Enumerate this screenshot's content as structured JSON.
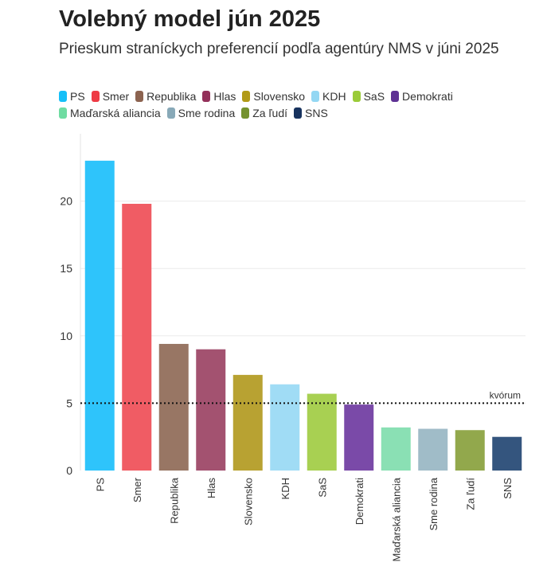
{
  "chart_data": {
    "type": "bar",
    "title": "Volebný model jún 2025",
    "subtitle": "Prieskum straníckych preferencií podľa agentúry NMS v júni 2025",
    "categories": [
      "PS",
      "Smer",
      "Republika",
      "Hlas",
      "Slovensko",
      "KDH",
      "SaS",
      "Demokrati",
      "Maďarská aliancia",
      "Sme rodina",
      "Za ľudí",
      "SNS"
    ],
    "values": [
      23.0,
      19.8,
      9.4,
      9.0,
      7.1,
      6.4,
      5.7,
      4.9,
      3.2,
      3.1,
      3.0,
      2.5
    ],
    "colors": [
      "#2ec4fb",
      "#f05c64",
      "#987664",
      "#a35270",
      "#b8a232",
      "#a0dcf5",
      "#a8d052",
      "#7a4aa8",
      "#8ae0b4",
      "#a0bcc8",
      "#92a84c",
      "#34557e"
    ],
    "legend_colors": [
      "#16bff8",
      "#ee3a44",
      "#8c6350",
      "#93305a",
      "#b19a17",
      "#93d7f3",
      "#9acb38",
      "#5e3194",
      "#6fdca2",
      "#88a9b8",
      "#74922e",
      "#17325e"
    ],
    "ylim": [
      0,
      25
    ],
    "yticks": [
      0,
      5,
      10,
      15,
      20
    ],
    "xlabel": "",
    "ylabel": "",
    "grid": true,
    "threshold": {
      "value": 5,
      "label": "kvórum"
    }
  }
}
